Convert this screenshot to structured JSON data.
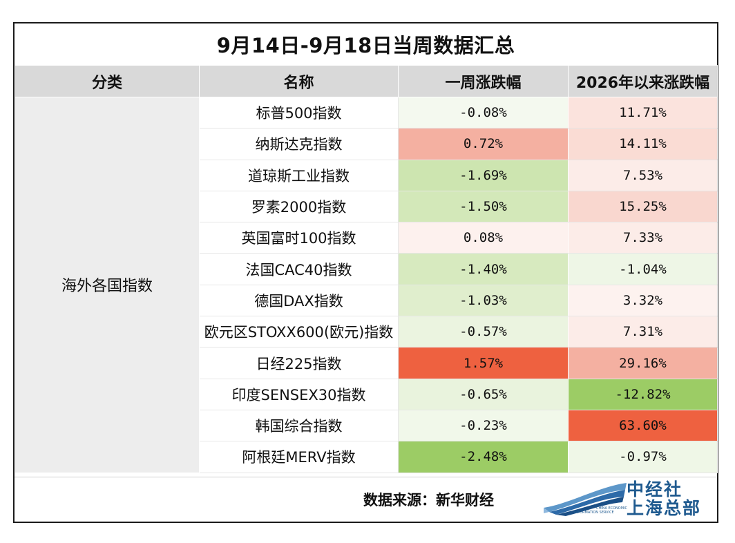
{
  "title": "9月14日-9月18日当周数据汇总",
  "headers": {
    "category": "分类",
    "name": "名称",
    "weekly": "一周涨跌幅",
    "ytd": "2026年以来涨跌幅"
  },
  "category": "海外各国指数",
  "colors": {
    "up_strong": "#ee6140",
    "up_medium": "#f4b0a1",
    "up_light": "#fae0da",
    "up_faint": "#fdf2ef",
    "down_strong": "#9ccc65",
    "down_medium": "#cfe6b3",
    "down_light": "#e6f2d9",
    "down_faint": "#f2f8ec"
  },
  "rows": [
    {
      "name": "标普500指数",
      "weekly": "-0.08%",
      "ytd": "11.71%",
      "weekly_bg": "#f4f9ef",
      "ytd_bg": "#fbe3dd"
    },
    {
      "name": "纳斯达克指数",
      "weekly": "0.72%",
      "ytd": "14.11%",
      "weekly_bg": "#f4b0a1",
      "ytd_bg": "#fadcd4"
    },
    {
      "name": "道琼斯工业指数",
      "weekly": "-1.69%",
      "ytd": "7.53%",
      "weekly_bg": "#cde5b0",
      "ytd_bg": "#fcece8"
    },
    {
      "name": "罗素2000指数",
      "weekly": "-1.50%",
      "ytd": "15.25%",
      "weekly_bg": "#d3e8b9",
      "ytd_bg": "#f9d7cf"
    },
    {
      "name": "英国富时100指数",
      "weekly": "0.08%",
      "ytd": "7.33%",
      "weekly_bg": "#fdf1ee",
      "ytd_bg": "#fcece8"
    },
    {
      "name": "法国CAC40指数",
      "weekly": "-1.40%",
      "ytd": "-1.04%",
      "weekly_bg": "#d7eabf",
      "ytd_bg": "#eef6e6"
    },
    {
      "name": "德国DAX指数",
      "weekly": "-1.03%",
      "ytd": "3.32%",
      "weekly_bg": "#e0eecd",
      "ytd_bg": "#fdf2ef"
    },
    {
      "name": "欧元区STOXX600(欧元)指数",
      "weekly": "-0.57%",
      "ytd": "7.31%",
      "weekly_bg": "#ebf4e0",
      "ytd_bg": "#fcece8"
    },
    {
      "name": "日经225指数",
      "weekly": "1.57%",
      "ytd": "29.16%",
      "weekly_bg": "#ee6140",
      "ytd_bg": "#f4b0a1"
    },
    {
      "name": "印度SENSEX30指数",
      "weekly": "-0.65%",
      "ytd": "-12.82%",
      "weekly_bg": "#e9f3dd",
      "ytd_bg": "#9ccc65"
    },
    {
      "name": "韩国综合指数",
      "weekly": "-0.23%",
      "ytd": "63.60%",
      "weekly_bg": "#f1f8ea",
      "ytd_bg": "#ee6140"
    },
    {
      "name": "阿根廷MERV指数",
      "weekly": "-2.48%",
      "ytd": "-0.97%",
      "weekly_bg": "#9ccc65",
      "ytd_bg": "#eff7e7"
    }
  ],
  "footer": {
    "source": "数据来源：新华财经",
    "logo_line1": "中经社",
    "logo_line2": "上海总部",
    "logo_en1": "CHINA ECONOMIC",
    "logo_en2": "INFORMATION SERVICE"
  }
}
